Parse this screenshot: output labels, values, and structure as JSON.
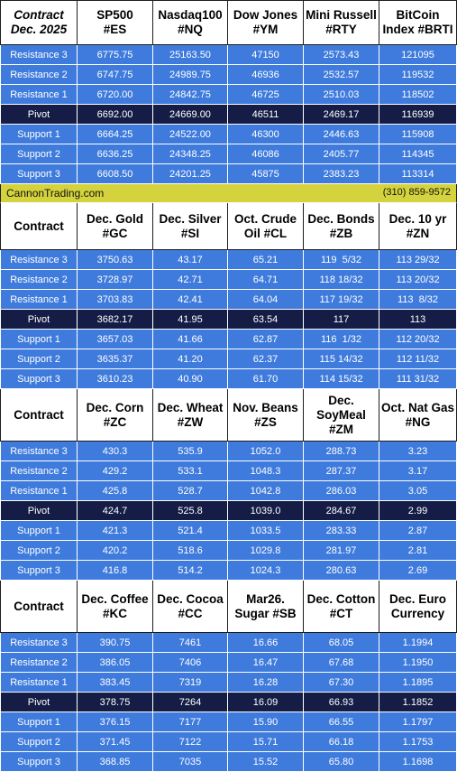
{
  "banner": {
    "website": "CannonTrading.com",
    "phone": "(310) 859-9572"
  },
  "sections": [
    {
      "headers": [
        {
          "l1": "Contract",
          "l2": "Dec. 2025"
        },
        {
          "l1": "SP500",
          "l2": "#ES"
        },
        {
          "l1": "Nasdaq100",
          "l2": "#NQ"
        },
        {
          "l1": "Dow Jones",
          "l2": "#YM"
        },
        {
          "l1": "Mini Russell",
          "l2": "#RTY"
        },
        {
          "l1": "BitCoin",
          "l2": "Index #BRTI"
        }
      ],
      "rows": [
        {
          "label": "Resistance 3",
          "values": [
            "6775.75",
            "25163.50",
            "47150",
            "2573.43",
            "121095"
          ]
        },
        {
          "label": "Resistance 2",
          "values": [
            "6747.75",
            "24989.75",
            "46936",
            "2532.57",
            "119532"
          ]
        },
        {
          "label": "Resistance 1",
          "values": [
            "6720.00",
            "24842.75",
            "46725",
            "2510.03",
            "118502"
          ]
        },
        {
          "label": "Pivot",
          "values": [
            "6692.00",
            "24669.00",
            "46511",
            "2469.17",
            "116939"
          ]
        },
        {
          "label": "Support 1",
          "values": [
            "6664.25",
            "24522.00",
            "46300",
            "2446.63",
            "115908"
          ]
        },
        {
          "label": "Support 2",
          "values": [
            "6636.25",
            "24348.25",
            "46086",
            "2405.77",
            "114345"
          ]
        },
        {
          "label": "Support 3",
          "values": [
            "6608.50",
            "24201.25",
            "45875",
            "2383.23",
            "113314"
          ]
        }
      ]
    },
    {
      "headers": [
        {
          "l1": "Contract",
          "l2": ""
        },
        {
          "l1": "Dec. Gold",
          "l2": "#GC"
        },
        {
          "l1": "Dec. Silver",
          "l2": "#SI"
        },
        {
          "l1": "Oct. Crude",
          "l2": "Oil #CL"
        },
        {
          "l1": "Dec. Bonds",
          "l2": "#ZB"
        },
        {
          "l1": "Dec. 10 yr",
          "l2": "#ZN"
        }
      ],
      "rows": [
        {
          "label": "Resistance 3",
          "values": [
            "3750.63",
            "43.17",
            "65.21",
            "119  5/32",
            "113 29/32"
          ]
        },
        {
          "label": "Resistance 2",
          "values": [
            "3728.97",
            "42.71",
            "64.71",
            "118 18/32",
            "113 20/32"
          ]
        },
        {
          "label": "Resistance 1",
          "values": [
            "3703.83",
            "42.41",
            "64.04",
            "117 19/32",
            "113  8/32"
          ]
        },
        {
          "label": "Pivot",
          "values": [
            "3682.17",
            "41.95",
            "63.54",
            "117",
            "113"
          ]
        },
        {
          "label": "Support 1",
          "values": [
            "3657.03",
            "41.66",
            "62.87",
            "116  1/32",
            "112 20/32"
          ]
        },
        {
          "label": "Support 2",
          "values": [
            "3635.37",
            "41.20",
            "62.37",
            "115 14/32",
            "112 11/32"
          ]
        },
        {
          "label": "Support 3",
          "values": [
            "3610.23",
            "40.90",
            "61.70",
            "114 15/32",
            "111 31/32"
          ]
        }
      ]
    },
    {
      "headers": [
        {
          "l1": "Contract",
          "l2": ""
        },
        {
          "l1": "Dec. Corn",
          "l2": "#ZC"
        },
        {
          "l1": "Dec.  Wheat",
          "l2": "#ZW"
        },
        {
          "l1": "Nov. Beans",
          "l2": "#ZS"
        },
        {
          "l1": "Dec.",
          "l2": "SoyMeal",
          "l3": "#ZM"
        },
        {
          "l1": "Oct. Nat Gas",
          "l2": "#NG"
        }
      ],
      "rows": [
        {
          "label": "Resistance 3",
          "values": [
            "430.3",
            "535.9",
            "1052.0",
            "288.73",
            "3.23"
          ]
        },
        {
          "label": "Resistance 2",
          "values": [
            "429.2",
            "533.1",
            "1048.3",
            "287.37",
            "3.17"
          ]
        },
        {
          "label": "Resistance 1",
          "values": [
            "425.8",
            "528.7",
            "1042.8",
            "286.03",
            "3.05"
          ]
        },
        {
          "label": "Pivot",
          "values": [
            "424.7",
            "525.8",
            "1039.0",
            "284.67",
            "2.99"
          ]
        },
        {
          "label": "Support 1",
          "values": [
            "421.3",
            "521.4",
            "1033.5",
            "283.33",
            "2.87"
          ]
        },
        {
          "label": "Support 2",
          "values": [
            "420.2",
            "518.6",
            "1029.8",
            "281.97",
            "2.81"
          ]
        },
        {
          "label": "Support 3",
          "values": [
            "416.8",
            "514.2",
            "1024.3",
            "280.63",
            "2.69"
          ]
        }
      ]
    },
    {
      "headers": [
        {
          "l1": "Contract",
          "l2": ""
        },
        {
          "l1": "Dec. Coffee",
          "l2": "#KC"
        },
        {
          "l1": "Dec. Cocoa",
          "l2": "#CC"
        },
        {
          "l1": "Mar26.",
          "l2": "Sugar #SB"
        },
        {
          "l1": "Dec. Cotton",
          "l2": "#CT"
        },
        {
          "l1": "Dec. Euro",
          "l2": "Currency"
        }
      ],
      "rows": [
        {
          "label": "Resistance 3",
          "values": [
            "390.75",
            "7461",
            "16.66",
            "68.05",
            "1.1994"
          ]
        },
        {
          "label": "Resistance 2",
          "values": [
            "386.05",
            "7406",
            "16.47",
            "67.68",
            "1.1950"
          ]
        },
        {
          "label": "Resistance 1",
          "values": [
            "383.45",
            "7319",
            "16.28",
            "67.30",
            "1.1895"
          ]
        },
        {
          "label": "Pivot",
          "values": [
            "378.75",
            "7264",
            "16.09",
            "66.93",
            "1.1852"
          ]
        },
        {
          "label": "Support 1",
          "values": [
            "376.15",
            "7177",
            "15.90",
            "66.55",
            "1.1797"
          ]
        },
        {
          "label": "Support 2",
          "values": [
            "371.45",
            "7122",
            "15.71",
            "66.18",
            "1.1753"
          ]
        },
        {
          "label": "Support 3",
          "values": [
            "368.85",
            "7035",
            "15.52",
            "65.80",
            "1.1698"
          ]
        }
      ]
    }
  ]
}
